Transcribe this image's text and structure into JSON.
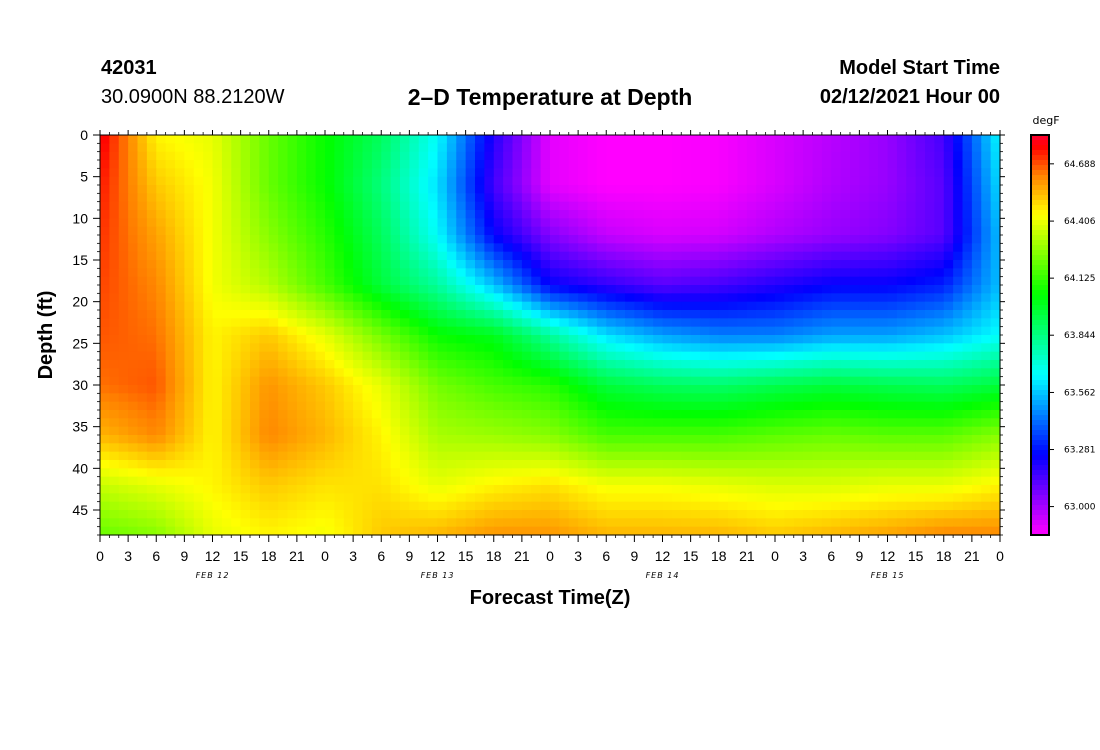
{
  "header": {
    "station_id": "42031",
    "station_location": "30.0900N 88.2120W",
    "title": "2–D Temperature at Depth",
    "model_start_label": "Model Start Time",
    "model_start_value": "02/12/2021 Hour 00"
  },
  "chart_data": {
    "type": "heatmap",
    "title": "2–D Temperature at Depth",
    "xlabel": "Forecast Time(Z)",
    "ylabel": "Depth (ft)",
    "x_unit": "hours",
    "xlim": [
      0,
      96
    ],
    "ylim": [
      0,
      48
    ],
    "y_inverted": true,
    "x_ticks": [
      "0",
      "3",
      "6",
      "9",
      "12",
      "15",
      "18",
      "21",
      "0",
      "3",
      "6",
      "9",
      "12",
      "15",
      "18",
      "21",
      "0",
      "3",
      "6",
      "9",
      "12",
      "15",
      "18",
      "21",
      "0",
      "3",
      "6",
      "9",
      "12",
      "15",
      "18",
      "21",
      "0"
    ],
    "y_ticks": [
      "0",
      "5",
      "10",
      "15",
      "20",
      "25",
      "30",
      "35",
      "40",
      "45"
    ],
    "date_labels": [
      "FEB 12",
      "FEB 13",
      "FEB 14",
      "FEB 15"
    ],
    "colorbar": {
      "unit": "degF",
      "labels": [
        "64.688",
        "64.406",
        "64.125",
        "63.844",
        "63.562",
        "63.281",
        "63.000"
      ],
      "values": [
        64.688,
        64.406,
        64.125,
        63.844,
        63.562,
        63.281,
        63.0
      ],
      "range": [
        62.86,
        64.83
      ]
    },
    "x_hours": [
      0,
      6,
      12,
      18,
      24,
      30,
      36,
      42,
      48,
      54,
      60,
      66,
      72,
      78,
      84,
      90,
      96
    ],
    "depths_ft": [
      0,
      6,
      12,
      18,
      24,
      30,
      36,
      42,
      48
    ],
    "temperature_degF": [
      [
        64.8,
        64.45,
        64.4,
        64.2,
        64.05,
        63.9,
        63.65,
        63.2,
        62.9,
        62.86,
        62.86,
        62.87,
        62.92,
        62.97,
        63.02,
        63.15,
        63.65
      ],
      [
        64.75,
        64.52,
        64.42,
        64.2,
        64.05,
        63.85,
        63.6,
        63.15,
        62.9,
        62.86,
        62.86,
        62.87,
        62.92,
        62.98,
        63.02,
        63.12,
        63.6
      ],
      [
        64.72,
        64.58,
        64.42,
        64.25,
        64.1,
        63.9,
        63.65,
        63.25,
        63.05,
        62.95,
        62.92,
        62.93,
        62.98,
        63.02,
        63.05,
        63.12,
        63.55
      ],
      [
        64.7,
        64.62,
        64.42,
        64.32,
        64.15,
        63.95,
        63.8,
        63.55,
        63.25,
        63.18,
        63.12,
        63.15,
        63.2,
        63.25,
        63.25,
        63.3,
        63.55
      ],
      [
        64.68,
        64.65,
        64.45,
        64.52,
        64.4,
        64.22,
        64.05,
        64.0,
        63.8,
        63.6,
        63.5,
        63.45,
        63.45,
        63.5,
        63.5,
        63.55,
        63.65
      ],
      [
        64.65,
        64.68,
        64.45,
        64.6,
        64.52,
        64.4,
        64.22,
        64.15,
        64.1,
        63.95,
        63.9,
        63.88,
        63.92,
        63.95,
        63.92,
        63.9,
        63.95
      ],
      [
        64.55,
        64.62,
        64.45,
        64.62,
        64.55,
        64.45,
        64.3,
        64.28,
        64.25,
        64.15,
        64.15,
        64.15,
        64.18,
        64.2,
        64.18,
        64.18,
        64.25
      ],
      [
        64.35,
        64.4,
        64.45,
        64.52,
        64.48,
        64.48,
        64.4,
        64.45,
        64.48,
        64.42,
        64.42,
        64.4,
        64.38,
        64.38,
        64.4,
        64.4,
        64.45
      ],
      [
        64.2,
        64.25,
        64.4,
        64.45,
        64.42,
        64.52,
        64.55,
        64.6,
        64.6,
        64.55,
        64.55,
        64.55,
        64.52,
        64.55,
        64.58,
        64.62,
        64.62
      ]
    ]
  }
}
